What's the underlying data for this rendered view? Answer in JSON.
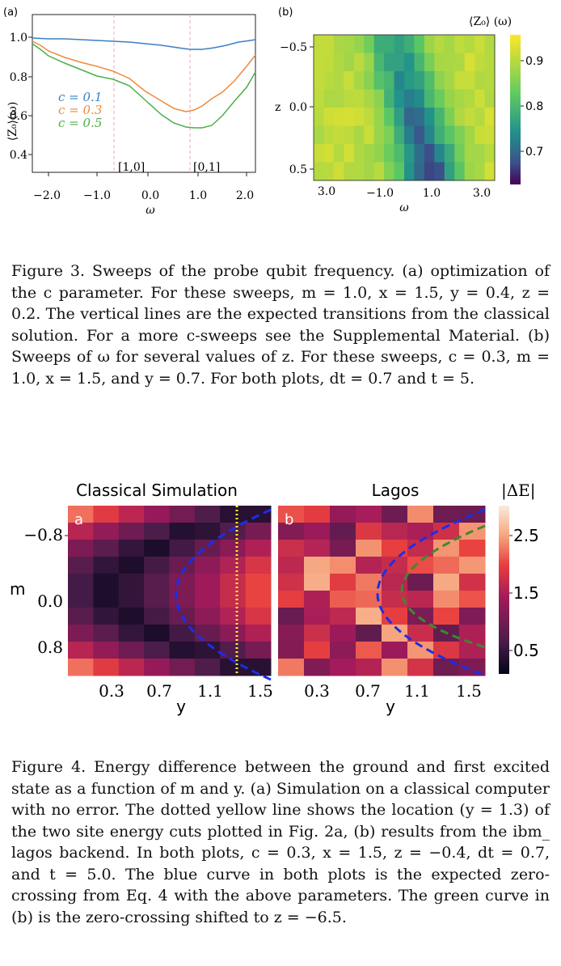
{
  "figure3": {
    "panel_a": {
      "label": "(a)",
      "ylabel": "⟨Z₀⟩(ω)",
      "xlabel": "ω",
      "xticks": [
        "−2.0",
        "−1.0",
        "0.0",
        "1.0",
        "2.0"
      ],
      "yticks": [
        "1.0",
        "0.8",
        "0.6",
        "0.4"
      ],
      "legend": [
        "c = 0.1",
        "c = 0.3",
        "c = 0.5"
      ],
      "annotations": [
        "[1,0]",
        "[0,1]"
      ]
    },
    "panel_b": {
      "label": "(b)",
      "ylabel": "z",
      "xlabel": "ω",
      "xticks": [
        "3.0",
        "−1.0",
        "1.0",
        "3.0"
      ],
      "yticks": [
        "−0.5",
        "0.0",
        "0.5"
      ],
      "colorbar_title": "⟨Z₀⟩ (ω)",
      "colorbar_ticks": [
        "0.9",
        "0.8",
        "0.7"
      ]
    },
    "caption": {
      "label": "Figure 3.",
      "text": "Sweeps of the probe qubit frequency. (a) optimization of the c parameter. For these sweeps, m = 1.0, x = 1.5, y = 0.4, z = 0.2. The vertical lines are the expected transitions from the classical solution. For a more c-sweeps see the Supplemental Material. (b) Sweeps of ω for several values of z. For these sweeps, c = 0.3, m = 1.0, x = 1.5, and y = 0.7. For both plots, dt = 0.7 and t = 5."
    }
  },
  "figure4": {
    "panel_a": {
      "title": "Classical Simulation",
      "label": "a",
      "ylabel": "m",
      "xlabel": "y",
      "xticks": [
        "0.3",
        "0.7",
        "1.1",
        "1.5"
      ],
      "yticks": [
        "−0.8",
        "0.0",
        "0.8"
      ]
    },
    "panel_b": {
      "title": "Lagos",
      "label": "b",
      "xlabel": "y",
      "xticks": [
        "0.3",
        "0.7",
        "1.1",
        "1.5"
      ],
      "colorbar_title": "|ΔE|",
      "colorbar_ticks": [
        "2.5",
        "1.5",
        "0.5"
      ]
    },
    "caption": {
      "label": "Figure 4.",
      "text": "Energy difference between the ground and first excited state as a function of m and y. (a) Simulation on a classical computer with no error. The dotted yellow line shows the location (y = 1.3) of the two site energy cuts plotted in Fig. 2a, (b) results from the ibm_ lagos backend. In both plots, c = 0.3, x = 1.5, z = −0.4, dt = 0.7, and t = 5.0. The blue curve in both plots is the expected zero-crossing from Eq. 4 with the above parameters. The green curve in (b) is the zero-crossing shifted to z = −6.5."
    }
  },
  "chart_data": [
    {
      "type": "line",
      "title": "(a)",
      "xlabel": "ω",
      "ylabel": "⟨Z₀⟩(ω)",
      "xlim": [
        -2.0,
        2.2
      ],
      "ylim": [
        0.33,
        1.02
      ],
      "x": [
        -2.0,
        -1.5,
        -1.0,
        -0.5,
        0.0,
        0.5,
        0.8,
        1.0,
        1.5,
        2.0,
        2.2
      ],
      "series": [
        {
          "name": "c = 0.1",
          "color": "#3b7fc4",
          "values": [
            0.99,
            0.985,
            0.98,
            0.97,
            0.96,
            0.94,
            0.93,
            0.935,
            0.95,
            0.98,
            0.99
          ]
        },
        {
          "name": "c = 0.3",
          "color": "#ee8a3a",
          "values": [
            0.97,
            0.93,
            0.89,
            0.86,
            0.8,
            0.68,
            0.62,
            0.63,
            0.7,
            0.82,
            0.9
          ]
        },
        {
          "name": "c = 0.5",
          "color": "#4cae4c",
          "values": [
            0.96,
            0.9,
            0.82,
            0.78,
            0.7,
            0.57,
            0.54,
            0.52,
            0.56,
            0.7,
            0.82
          ]
        }
      ],
      "vlines": [
        {
          "x": -0.7,
          "label": "[1,0]"
        },
        {
          "x": 0.8,
          "label": "[0,1]"
        }
      ]
    },
    {
      "type": "heatmap",
      "title": "(b)",
      "xlabel": "ω",
      "ylabel": "z",
      "colorbar": "⟨Z₀⟩ (ω)",
      "clim": [
        0.63,
        0.95
      ],
      "colormap": "viridis"
    },
    {
      "type": "heatmap",
      "title": "Classical Simulation",
      "xlabel": "y",
      "ylabel": "m",
      "xticks": [
        0.3,
        0.7,
        1.1,
        1.5
      ],
      "yticks": [
        -0.8,
        0.0,
        0.8
      ],
      "colormap": "rocket",
      "annotations": [
        "dotted yellow line at y = 1.3",
        "blue dashed zero-crossing curve"
      ]
    },
    {
      "type": "heatmap",
      "title": "Lagos",
      "xlabel": "y",
      "xticks": [
        0.3,
        0.7,
        1.1,
        1.5
      ],
      "colorbar": "|ΔE|",
      "clim": [
        0.0,
        2.9
      ],
      "colorbar_ticks": [
        0.5,
        1.5,
        2.5
      ],
      "colormap": "rocket",
      "annotations": [
        "blue dashed zero-crossing curve",
        "green dashed zero-crossing curve (z = −6.5)"
      ]
    }
  ]
}
